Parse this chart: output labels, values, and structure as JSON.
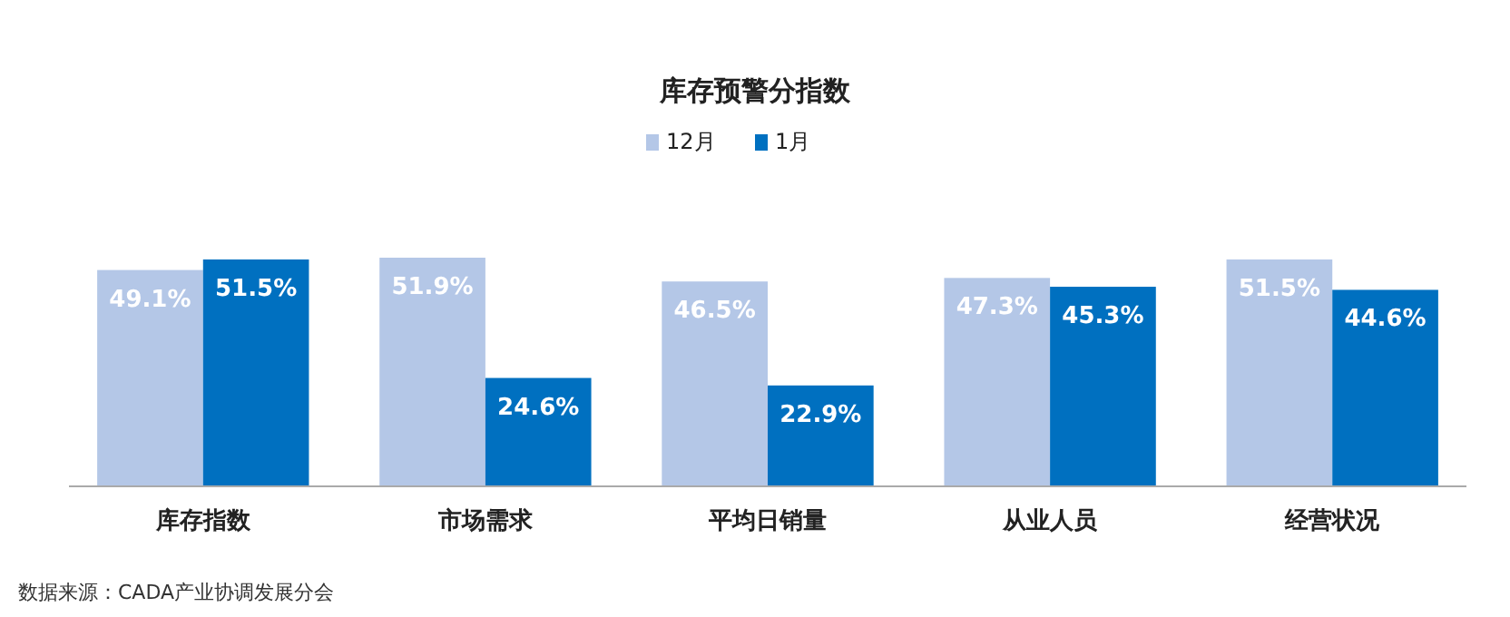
{
  "chart_data": {
    "type": "bar",
    "title": "库存预警分指数",
    "categories": [
      "库存指数",
      "市场需求",
      "平均日销量",
      "从业人员",
      "经营状况"
    ],
    "series": [
      {
        "name": "12月",
        "color": "#b4c7e7",
        "values": [
          49.1,
          51.9,
          46.5,
          47.3,
          51.5
        ],
        "value_labels": [
          "49.1%",
          "51.9%",
          "46.5%",
          "47.3%",
          "51.5%"
        ]
      },
      {
        "name": "1月",
        "color": "#0070c0",
        "values": [
          51.5,
          24.6,
          22.9,
          45.3,
          44.6
        ],
        "value_labels": [
          "51.5%",
          "24.6%",
          "22.9%",
          "45.3%",
          "44.6%"
        ]
      }
    ],
    "legend": "top",
    "annotations": [
      "数据来源：CADA产业协调发展分会"
    ]
  }
}
